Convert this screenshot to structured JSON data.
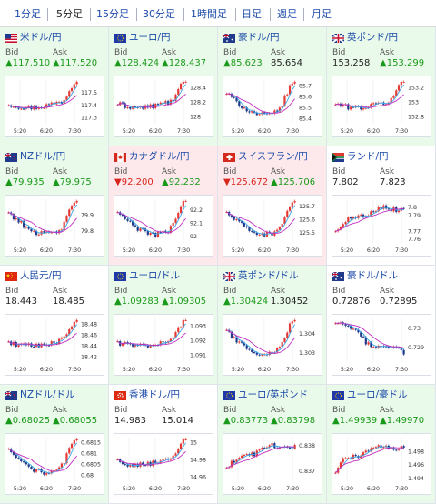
{
  "tabs": [
    {
      "label": "1分足",
      "active": false
    },
    {
      "label": "5分足",
      "active": true
    },
    {
      "label": "15分足",
      "active": false
    },
    {
      "label": "30分足",
      "active": false
    },
    {
      "label": "1時間足",
      "active": false
    },
    {
      "label": "日足",
      "active": false
    },
    {
      "label": "週足",
      "active": false
    },
    {
      "label": "月足",
      "active": false
    }
  ],
  "labels": {
    "bid": "Bid",
    "ask": "Ask"
  },
  "x_ticks": [
    "5:20",
    "6:20",
    "7:30"
  ],
  "arrows": {
    "up": "▲",
    "down": "▼"
  },
  "colors": {
    "up": "#1a9a1a",
    "down": "#d9261c",
    "candle_up": "#e53935",
    "candle_down": "#1f3a8a",
    "ma_short": "#3aa7e8",
    "ma_long": "#c02ec0",
    "cell_up": "#eafaea",
    "cell_down": "#fde9ec"
  },
  "pairs": [
    {
      "name": "米ドル/円",
      "flag": "us-flag",
      "trend": "up",
      "bid": "117.510",
      "bid_dir": "up",
      "ask": "117.520",
      "ask_dir": "up",
      "y_ticks": [
        "117.5",
        "117.4",
        "117.3"
      ],
      "ylim": [
        117.25,
        117.6
      ],
      "shape": "up_end"
    },
    {
      "name": "ユーロ/円",
      "flag": "eu-flag",
      "trend": "up",
      "bid": "128.424",
      "bid_dir": "up",
      "ask": "128.437",
      "ask_dir": "up",
      "y_ticks": [
        "128.4",
        "128.2",
        "128"
      ],
      "ylim": [
        127.9,
        128.5
      ],
      "shape": "up_end"
    },
    {
      "name": "豪ドル/円",
      "flag": "au-flag",
      "trend": "up",
      "bid": "85.623",
      "bid_dir": "up",
      "ask": "85.654",
      "ask_dir": "flat",
      "y_ticks": [
        "85.7",
        "85.6",
        "85.5",
        "85.4"
      ],
      "ylim": [
        85.35,
        85.75
      ],
      "shape": "dip_rise"
    },
    {
      "name": "英ポンド/円",
      "flag": "gb-flag",
      "trend": "up",
      "bid": "153.258",
      "bid_dir": "flat",
      "ask": "153.299",
      "ask_dir": "up",
      "y_ticks": [
        "153.2",
        "153",
        "152.8"
      ],
      "ylim": [
        152.7,
        153.3
      ],
      "shape": "up_end"
    },
    {
      "name": "NZドル/円",
      "flag": "nz-flag",
      "trend": "up",
      "bid": "79.935",
      "bid_dir": "up",
      "ask": "79.975",
      "ask_dir": "up",
      "y_ticks": [
        "79.9",
        "79.8"
      ],
      "ylim": [
        79.72,
        80.0
      ],
      "shape": "dip_rise"
    },
    {
      "name": "カナダドル/円",
      "flag": "ca-flag",
      "trend": "down",
      "bid": "92.200",
      "bid_dir": "down",
      "ask": "92.232",
      "ask_dir": "up",
      "y_ticks": [
        "92.2",
        "92.1",
        "92"
      ],
      "ylim": [
        91.95,
        92.28
      ],
      "shape": "dip_rise"
    },
    {
      "name": "スイスフラン/円",
      "flag": "ch-flag",
      "trend": "down",
      "bid": "125.672",
      "bid_dir": "down",
      "ask": "125.706",
      "ask_dir": "up",
      "y_ticks": [
        "125.7",
        "125.6",
        "125.5"
      ],
      "ylim": [
        125.42,
        125.75
      ],
      "shape": "dip_rise"
    },
    {
      "name": "ランド/円",
      "flag": "za-flag",
      "trend": "flat",
      "bid": "7.802",
      "bid_dir": "flat",
      "ask": "7.823",
      "ask_dir": "flat",
      "y_ticks": [
        "7.8",
        "7.79",
        "7.77",
        "7.76"
      ],
      "ylim": [
        7.755,
        7.81
      ],
      "shape": "rise_flat"
    },
    {
      "name": "人民元/円",
      "flag": "cn-flag",
      "trend": "flat",
      "bid": "18.443",
      "bid_dir": "flat",
      "ask": "18.485",
      "ask_dir": "flat",
      "y_ticks": [
        "18.48",
        "18.46",
        "18.44",
        "18.42"
      ],
      "ylim": [
        18.41,
        18.49
      ],
      "shape": "up_end"
    },
    {
      "name": "ユーロ/ドル",
      "flag": "eu-flag",
      "trend": "up",
      "bid": "1.09283",
      "bid_dir": "up",
      "ask": "1.09305",
      "ask_dir": "up",
      "y_ticks": [
        "1.093",
        "1.092",
        "1.091"
      ],
      "ylim": [
        1.0905,
        1.0935
      ],
      "shape": "up_end"
    },
    {
      "name": "英ポンド/ドル",
      "flag": "gb-flag",
      "trend": "up",
      "bid": "1.30424",
      "bid_dir": "up",
      "ask": "1.30452",
      "ask_dir": "flat",
      "y_ticks": [
        "1.304",
        "1.303"
      ],
      "ylim": [
        1.3025,
        1.3048
      ],
      "shape": "dip_rise"
    },
    {
      "name": "豪ドル/ドル",
      "flag": "au-flag",
      "trend": "flat",
      "bid": "0.72876",
      "bid_dir": "flat",
      "ask": "0.72895",
      "ask_dir": "flat",
      "y_ticks": [
        "0.73",
        "0.729"
      ],
      "ylim": [
        0.7282,
        0.7305
      ],
      "shape": "fall"
    },
    {
      "name": "NZドル/ドル",
      "flag": "nz-flag",
      "trend": "up",
      "bid": "0.68025",
      "bid_dir": "up",
      "ask": "0.68055",
      "ask_dir": "up",
      "y_ticks": [
        "0.6815",
        "0.681",
        "0.6805",
        "0.68"
      ],
      "ylim": [
        0.6797,
        0.6817
      ],
      "shape": "dip_rise"
    },
    {
      "name": "香港ドル/円",
      "flag": "hk-flag",
      "trend": "flat",
      "bid": "14.983",
      "bid_dir": "flat",
      "ask": "15.014",
      "ask_dir": "flat",
      "y_ticks": [
        "15",
        "14.98",
        "14.96"
      ],
      "ylim": [
        14.955,
        15.005
      ],
      "shape": "up_end"
    },
    {
      "name": "ユーロ/英ポンド",
      "flag": "eu-flag",
      "trend": "up",
      "bid": "0.83773",
      "bid_dir": "up",
      "ask": "0.83798",
      "ask_dir": "up",
      "y_ticks": [
        "0.838",
        "0.837"
      ],
      "ylim": [
        0.8366,
        0.8383
      ],
      "shape": "rise_flat"
    },
    {
      "name": "ユーロ/豪ドル",
      "flag": "eu-flag",
      "trend": "up",
      "bid": "1.49939",
      "bid_dir": "up",
      "ask": "1.49970",
      "ask_dir": "up",
      "y_ticks": [
        "1.498",
        "1.496",
        "1.494"
      ],
      "ylim": [
        1.4935,
        1.5
      ],
      "shape": "rise_flat"
    }
  ]
}
